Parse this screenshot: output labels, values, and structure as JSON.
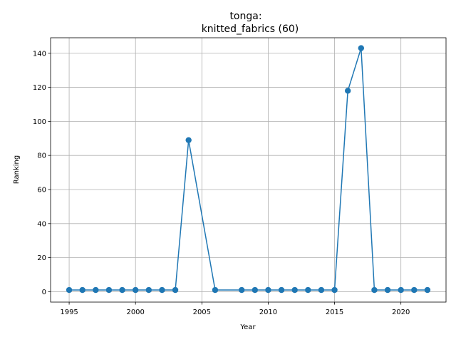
{
  "chart_data": {
    "type": "line",
    "title_line1": "tonga:",
    "title_line2": "knitted_fabrics (60)",
    "xlabel": "Year",
    "ylabel": "Ranking",
    "xlim": [
      1993.6,
      2023.4
    ],
    "ylim": [
      -6.1,
      149.1
    ],
    "xticks": [
      1995,
      2000,
      2005,
      2010,
      2015,
      2020
    ],
    "yticks": [
      0,
      20,
      40,
      60,
      80,
      100,
      120,
      140
    ],
    "grid": true,
    "series": [
      {
        "color": "#1f77b4",
        "points": [
          [
            1995,
            1
          ],
          [
            1996,
            1
          ],
          [
            1997,
            1
          ],
          [
            1998,
            1
          ],
          [
            1999,
            1
          ],
          [
            2000,
            1
          ],
          [
            2001,
            1
          ],
          [
            2002,
            1
          ],
          [
            2003,
            1
          ],
          [
            2004,
            89
          ],
          [
            2006,
            1
          ],
          [
            2008,
            1
          ],
          [
            2009,
            1
          ],
          [
            2010,
            1
          ],
          [
            2011,
            1
          ],
          [
            2012,
            1
          ],
          [
            2013,
            1
          ],
          [
            2014,
            1
          ],
          [
            2015,
            1
          ],
          [
            2016,
            118
          ],
          [
            2017,
            143
          ],
          [
            2018,
            1
          ],
          [
            2019,
            1
          ],
          [
            2020,
            1
          ],
          [
            2021,
            1
          ],
          [
            2022,
            1
          ]
        ]
      }
    ]
  }
}
